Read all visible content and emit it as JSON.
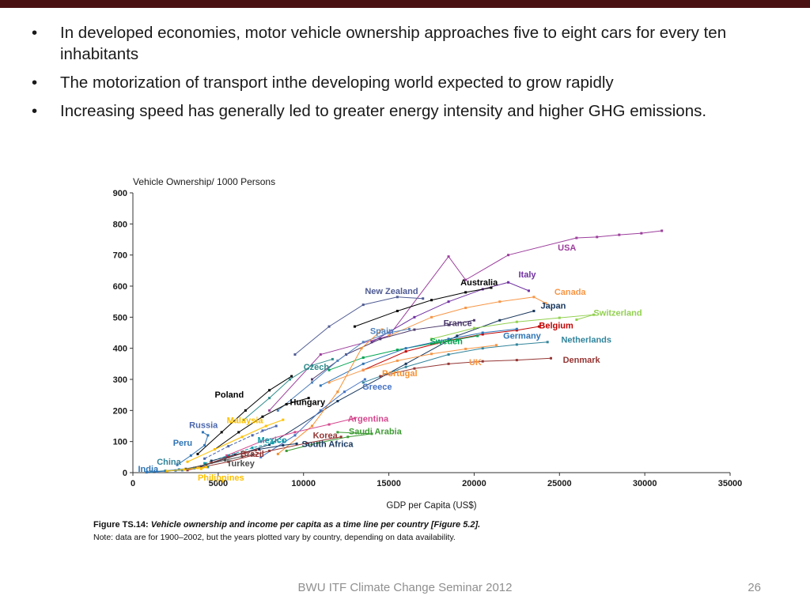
{
  "accent_bar_color": "#4a1113",
  "bullets": [
    "In developed economies, motor vehicle ownership approaches five to eight cars for every ten inhabitants",
    "The motorization of transport inthe developing world expected to grow rapidly",
    "Increasing speed has generally led to greater energy intensity and higher GHG emissions."
  ],
  "caption": {
    "label": "Figure TS.14:",
    "text": " Vehicle ownership and income per capita as a time line per country [Figure 5.2]."
  },
  "note": "Note: data are for 1900–2002, but the years plotted vary by country, depending on data availability.",
  "footer": {
    "title": "BWU ITF Climate Change Seminar 2012",
    "page_number": "26"
  },
  "chart_data": {
    "type": "line",
    "title": "Vehicle Ownership/ 1000 Persons",
    "xlabel": "GDP per Capita (US$)",
    "ylabel": "Vehicle Ownership/ 1000 Persons",
    "xlim": [
      0,
      35000
    ],
    "ylim": [
      0,
      900
    ],
    "x_ticks": [
      0,
      5000,
      10000,
      15000,
      20000,
      25000,
      30000,
      35000
    ],
    "y_ticks": [
      0,
      100,
      200,
      300,
      400,
      500,
      600,
      700,
      800,
      900
    ],
    "grid": false,
    "legend": "inline country labels",
    "series": [
      {
        "name": "USA",
        "color": "#9c3f9c",
        "label": [
          24900,
          715
        ],
        "points": [
          [
            8000,
            200
          ],
          [
            11000,
            380
          ],
          [
            15000,
            440
          ],
          [
            18500,
            695
          ],
          [
            19500,
            620
          ],
          [
            22000,
            700
          ],
          [
            26000,
            755
          ],
          [
            27200,
            758
          ],
          [
            28500,
            765
          ],
          [
            29800,
            770
          ],
          [
            31000,
            778
          ]
        ]
      },
      {
        "name": "Italy",
        "color": "#7030a0",
        "label": [
          22600,
          628
        ],
        "points": [
          [
            14000,
            420
          ],
          [
            16500,
            500
          ],
          [
            18500,
            550
          ],
          [
            20500,
            590
          ],
          [
            22000,
            612
          ],
          [
            23200,
            585
          ]
        ]
      },
      {
        "name": "Australia",
        "color": "#000000",
        "label": [
          19200,
          602
        ],
        "points": [
          [
            13000,
            470
          ],
          [
            15500,
            520
          ],
          [
            17500,
            555
          ],
          [
            19500,
            580
          ],
          [
            21000,
            595
          ]
        ]
      },
      {
        "name": "New Zealand",
        "color": "#4f5b93",
        "label": [
          13600,
          574
        ],
        "points": [
          [
            9500,
            380
          ],
          [
            11500,
            470
          ],
          [
            13500,
            540
          ],
          [
            15500,
            565
          ],
          [
            17000,
            560
          ]
        ]
      },
      {
        "name": "Canada",
        "color": "#f79646",
        "label": [
          24700,
          572
        ],
        "points": [
          [
            15000,
            440
          ],
          [
            17500,
            500
          ],
          [
            19500,
            530
          ],
          [
            21500,
            550
          ],
          [
            23500,
            565
          ],
          [
            24200,
            545
          ]
        ]
      },
      {
        "name": "Japan",
        "color": "#17365d",
        "label": [
          23900,
          528
        ],
        "points": [
          [
            4000,
            20
          ],
          [
            8000,
            90
          ],
          [
            12000,
            230
          ],
          [
            16000,
            350
          ],
          [
            19000,
            440
          ],
          [
            21500,
            490
          ],
          [
            23500,
            520
          ]
        ]
      },
      {
        "name": "Switzerland",
        "color": "#92d050",
        "label": [
          27000,
          505
        ],
        "points": [
          [
            17500,
            430
          ],
          [
            20000,
            465
          ],
          [
            22500,
            485
          ],
          [
            25000,
            498
          ],
          [
            27000,
            508
          ],
          [
            26000,
            492
          ]
        ]
      },
      {
        "name": "France",
        "color": "#4c3a6b",
        "label": [
          18200,
          472
        ],
        "points": [
          [
            10500,
            300
          ],
          [
            12500,
            380
          ],
          [
            14500,
            430
          ],
          [
            16500,
            460
          ],
          [
            18500,
            475
          ],
          [
            20000,
            490
          ]
        ]
      },
      {
        "name": "Belgium",
        "color": "#c00000",
        "label": [
          23800,
          464
        ],
        "points": [
          [
            13500,
            330
          ],
          [
            16000,
            390
          ],
          [
            18500,
            425
          ],
          [
            20500,
            445
          ],
          [
            22500,
            458
          ],
          [
            23800,
            470
          ]
        ]
      },
      {
        "name": "Spain",
        "color": "#4f81bd",
        "label": [
          13900,
          446
        ],
        "points": [
          [
            8500,
            200
          ],
          [
            10500,
            290
          ],
          [
            12000,
            360
          ],
          [
            13500,
            420
          ],
          [
            15000,
            450
          ],
          [
            16200,
            462
          ]
        ]
      },
      {
        "name": "Sweden",
        "color": "#00a651",
        "label": [
          17400,
          413
        ],
        "points": [
          [
            11500,
            330
          ],
          [
            13500,
            370
          ],
          [
            15500,
            395
          ],
          [
            17500,
            415
          ],
          [
            19000,
            428
          ],
          [
            20200,
            440
          ]
        ]
      },
      {
        "name": "Germany",
        "color": "#2e74b5",
        "label": [
          21700,
          431
        ],
        "points": [
          [
            11000,
            280
          ],
          [
            13500,
            350
          ],
          [
            16000,
            400
          ],
          [
            18500,
            430
          ],
          [
            20500,
            450
          ],
          [
            22500,
            462
          ]
        ]
      },
      {
        "name": "Netherlands",
        "color": "#31849b",
        "label": [
          25100,
          418
        ],
        "points": [
          [
            13500,
            290
          ],
          [
            16000,
            340
          ],
          [
            18500,
            380
          ],
          [
            20500,
            400
          ],
          [
            22500,
            412
          ],
          [
            24300,
            420
          ]
        ]
      },
      {
        "name": "UK",
        "color": "#f79646",
        "label": [
          19700,
          346
        ],
        "points": [
          [
            11500,
            290
          ],
          [
            13500,
            330
          ],
          [
            15500,
            360
          ],
          [
            17500,
            382
          ],
          [
            19500,
            398
          ],
          [
            21300,
            410
          ]
        ]
      },
      {
        "name": "Denmark",
        "color": "#943634",
        "label": [
          25200,
          354
        ],
        "points": [
          [
            14500,
            310
          ],
          [
            16500,
            335
          ],
          [
            18500,
            350
          ],
          [
            20500,
            358
          ],
          [
            22500,
            362
          ],
          [
            24500,
            368
          ]
        ]
      },
      {
        "name": "Czech",
        "color": "#2e8b8b",
        "label": [
          10000,
          331
        ],
        "points": [
          [
            6500,
            170
          ],
          [
            8000,
            240
          ],
          [
            9200,
            300
          ],
          [
            10500,
            345
          ],
          [
            11700,
            365
          ]
        ]
      },
      {
        "name": "Portugal",
        "color": "#f78f2e",
        "label": [
          14600,
          310
        ],
        "points": [
          [
            8500,
            60
          ],
          [
            10500,
            150
          ],
          [
            12000,
            260
          ],
          [
            13400,
            400
          ],
          [
            14600,
            460
          ]
        ]
      },
      {
        "name": "Greece",
        "color": "#4472c4",
        "label": [
          13450,
          267
        ],
        "points": [
          [
            7500,
            50
          ],
          [
            9500,
            120
          ],
          [
            11000,
            200
          ],
          [
            12400,
            260
          ],
          [
            13600,
            300
          ]
        ]
      },
      {
        "name": "Poland",
        "color": "#000000",
        "label": [
          4800,
          241
        ],
        "points": [
          [
            3800,
            60
          ],
          [
            5200,
            130
          ],
          [
            6600,
            200
          ],
          [
            8000,
            265
          ],
          [
            9300,
            310
          ]
        ]
      },
      {
        "name": "Hungary",
        "color": "#000000",
        "label": [
          9200,
          218
        ],
        "points": [
          [
            4800,
            75
          ],
          [
            6200,
            130
          ],
          [
            7600,
            180
          ],
          [
            9000,
            220
          ],
          [
            10300,
            240
          ]
        ]
      },
      {
        "name": "Argentina",
        "color": "#d5488e",
        "label": [
          12600,
          164
        ],
        "points": [
          [
            5500,
            55
          ],
          [
            7500,
            100
          ],
          [
            9500,
            130
          ],
          [
            11500,
            155
          ],
          [
            13000,
            175
          ]
        ]
      },
      {
        "name": "Russia",
        "color": "#4a66ac",
        "label": [
          3300,
          144
        ],
        "dash": true,
        "points": [
          [
            4200,
            45
          ],
          [
            5600,
            85
          ],
          [
            7000,
            120
          ],
          [
            8400,
            150
          ],
          [
            7600,
            135
          ]
        ]
      },
      {
        "name": "Malaysia",
        "color": "#ffc000",
        "label": [
          5500,
          159
        ],
        "points": [
          [
            3200,
            35
          ],
          [
            4800,
            75
          ],
          [
            6400,
            115
          ],
          [
            7800,
            150
          ],
          [
            8800,
            170
          ]
        ]
      },
      {
        "name": "Saudi Arabia",
        "color": "#3f9c35",
        "label": [
          12650,
          123
        ],
        "points": [
          [
            9000,
            70
          ],
          [
            10800,
            95
          ],
          [
            12600,
            115
          ],
          [
            14000,
            125
          ],
          [
            12000,
            130
          ]
        ]
      },
      {
        "name": "Korea",
        "color": "#943634",
        "label": [
          10550,
          110
        ],
        "points": [
          [
            3200,
            8
          ],
          [
            5600,
            35
          ],
          [
            8000,
            70
          ],
          [
            10200,
            95
          ],
          [
            12200,
            115
          ]
        ]
      },
      {
        "name": "Mexico",
        "color": "#0d9ba8",
        "label": [
          7300,
          95
        ],
        "dash": true,
        "points": [
          [
            4200,
            30
          ],
          [
            5600,
            55
          ],
          [
            7000,
            80
          ],
          [
            8200,
            95
          ],
          [
            8800,
            102
          ]
        ]
      },
      {
        "name": "South Africa",
        "color": "#17365d",
        "label": [
          9900,
          82
        ],
        "points": [
          [
            4600,
            38
          ],
          [
            6000,
            58
          ],
          [
            7400,
            75
          ],
          [
            8800,
            88
          ],
          [
            9600,
            93
          ]
        ]
      },
      {
        "name": "Peru",
        "color": "#2e74b5",
        "label": [
          2350,
          87
        ],
        "points": [
          [
            2600,
            25
          ],
          [
            3400,
            55
          ],
          [
            4200,
            88
          ],
          [
            4400,
            120
          ],
          [
            4100,
            130
          ]
        ]
      },
      {
        "name": "Brazil",
        "color": "#943634",
        "label": [
          6300,
          51
        ],
        "points": [
          [
            3600,
            15
          ],
          [
            4600,
            32
          ],
          [
            5600,
            50
          ],
          [
            6600,
            65
          ],
          [
            7200,
            72
          ]
        ]
      },
      {
        "name": "China",
        "color": "#31849b",
        "label": [
          1400,
          26
        ],
        "points": [
          [
            1100,
            3
          ],
          [
            1900,
            6
          ],
          [
            2700,
            10
          ],
          [
            3600,
            14
          ],
          [
            4400,
            18
          ]
        ]
      },
      {
        "name": "Turkey",
        "color": "#4d4d4d",
        "label": [
          5500,
          20
        ],
        "points": [
          [
            3100,
            12
          ],
          [
            4300,
            26
          ],
          [
            5400,
            40
          ],
          [
            6400,
            52
          ],
          [
            7000,
            58
          ]
        ]
      },
      {
        "name": "India",
        "color": "#2e74b5",
        "label": [
          300,
          3
        ],
        "points": [
          [
            800,
            1
          ],
          [
            1400,
            3
          ],
          [
            2000,
            5
          ],
          [
            2500,
            7
          ],
          [
            2900,
            8
          ]
        ]
      },
      {
        "name": "Philippines",
        "color": "#ffc000",
        "label": [
          3800,
          -25
        ],
        "points": [
          [
            2000,
            5
          ],
          [
            3000,
            10
          ],
          [
            3800,
            15
          ],
          [
            4300,
            18
          ],
          [
            4000,
            12
          ]
        ]
      }
    ]
  }
}
